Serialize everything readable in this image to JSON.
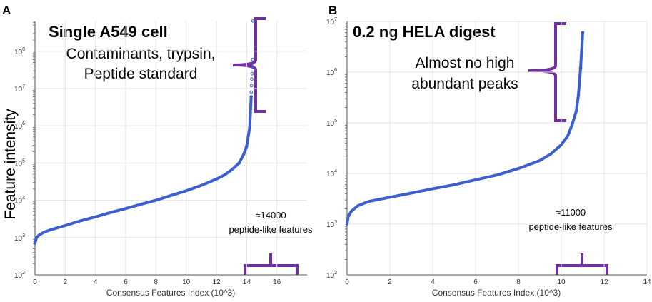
{
  "y_axis_label": "Feature intensity",
  "colors": {
    "series": "#3b5fd0",
    "bracket": "#7030a0",
    "grid": "#e3e3e3",
    "axis": "#555555"
  },
  "chart_data": [
    {
      "type": "scatter",
      "panel": "A",
      "title": "Single A549 cell",
      "annotation_top": [
        "Contaminants, trypsin,",
        "Peptide standard"
      ],
      "annotation_count": [
        "≈14000",
        "peptide-like features"
      ],
      "xlabel": "Consensus Features Index (10^3)",
      "xlim": [
        0,
        18
      ],
      "xticks": [
        "0",
        "2",
        "4",
        "6",
        "8",
        "10",
        "12",
        "14",
        "16"
      ],
      "ylim_log10": [
        2,
        8.8
      ],
      "yticks": [
        {
          "exp": 2,
          "label": "10"
        },
        {
          "exp": 3,
          "label": "10"
        },
        {
          "exp": 4,
          "label": "10"
        },
        {
          "exp": 5,
          "label": "10"
        },
        {
          "exp": 6,
          "label": "10"
        },
        {
          "exp": 7,
          "label": "10"
        },
        {
          "exp": 8,
          "label": "10"
        }
      ],
      "series": [
        {
          "name": "Feature intensity",
          "x": [
            0,
            0.1,
            0.3,
            0.6,
            1,
            2,
            3,
            4,
            5,
            6,
            7,
            8,
            9,
            10,
            11,
            12,
            12.5,
            13,
            13.5,
            13.8,
            14,
            14.2,
            14.3
          ],
          "y": [
            700,
            1000,
            1200,
            1400,
            1600,
            2100,
            2800,
            3600,
            4700,
            6000,
            7800,
            10000,
            13500,
            18000,
            25000,
            37000,
            47000,
            65000,
            100000,
            170000,
            280000,
            900000,
            6000000
          ]
        }
      ],
      "outliers_x": [
        14.3,
        14.32,
        14.34,
        14.36,
        14.38,
        14.4,
        14.42
      ],
      "outliers_y": [
        8000000,
        12000000,
        18000000,
        25000000,
        40000000,
        60000000,
        650000000
      ],
      "bracket_note": "high-abundance region at top (~1e6 to 5e8), ~14000 features at x-axis"
    },
    {
      "type": "scatter",
      "panel": "B",
      "title": "0.2 ng HELA digest",
      "annotation_top": [
        "Almost no high",
        "abundant peaks"
      ],
      "annotation_count": [
        "≈11000",
        "peptide-like features"
      ],
      "xlabel": "Consensus Features Index (10^3)",
      "xlim": [
        0,
        14
      ],
      "xticks": [
        "0",
        "2",
        "4",
        "6",
        "8",
        "10",
        "12",
        "14"
      ],
      "ylim_log10": [
        2,
        7
      ],
      "yticks": [
        {
          "exp": 2,
          "label": "10"
        },
        {
          "exp": 3,
          "label": "10"
        },
        {
          "exp": 4,
          "label": "10"
        },
        {
          "exp": 5,
          "label": "10"
        },
        {
          "exp": 6,
          "label": "10"
        },
        {
          "exp": 7,
          "label": "10"
        }
      ],
      "series": [
        {
          "name": "Feature intensity",
          "x": [
            0,
            0.05,
            0.2,
            0.5,
            1,
            2,
            3,
            4,
            5,
            6,
            7,
            8,
            9,
            9.5,
            10,
            10.3,
            10.5,
            10.7,
            10.8,
            10.9,
            11
          ],
          "y": [
            1000,
            1400,
            1800,
            2300,
            2800,
            3400,
            4100,
            5000,
            6000,
            7500,
            9300,
            12500,
            18000,
            24000,
            37000,
            55000,
            90000,
            170000,
            350000,
            1200000,
            6000000
          ]
        }
      ],
      "bracket_note": "high-abundance region at top (~1e5 to 1e7), ~11000 features at x-axis"
    }
  ]
}
